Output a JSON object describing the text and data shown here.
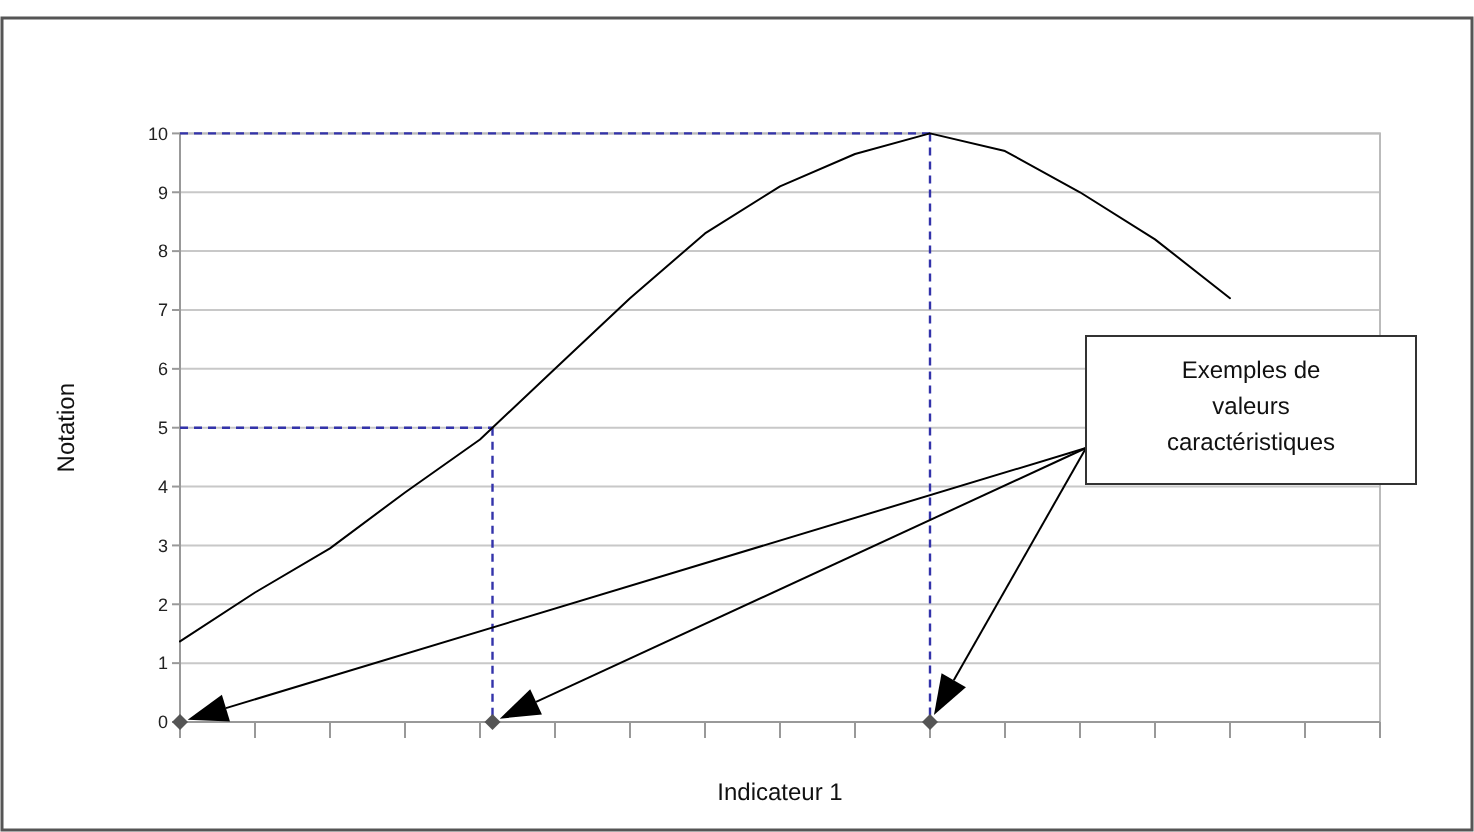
{
  "chart_data": {
    "type": "line",
    "xlabel": "Indicateur 1",
    "ylabel": "Notation",
    "categories": [
      null,
      null,
      null,
      null,
      null,
      null,
      null,
      null,
      null,
      null,
      null,
      null,
      null,
      null,
      null,
      null,
      null
    ],
    "ylim": [
      0,
      10
    ],
    "yticks": [
      0,
      1,
      2,
      3,
      4,
      5,
      6,
      7,
      8,
      9,
      10
    ],
    "tick_labels": "y",
    "grid": "y",
    "series": [
      {
        "color": "#000000",
        "values": [
          1.37,
          2.2,
          2.95,
          3.9,
          4.8,
          6.0,
          7.2,
          8.3,
          9.1,
          9.65,
          10,
          9.7,
          9.0,
          8.2,
          7.2,
          null,
          null
        ]
      }
    ],
    "ref_lines": [
      {
        "axis": "y",
        "value": 5,
        "color": "#3333aa",
        "line_style": "dashed"
      },
      {
        "axis": "y",
        "value": 10,
        "color": "#3333aa",
        "line_style": "dashed"
      }
    ],
    "annotations": [
      "Exemples de valeurs caractéristiques"
    ]
  }
}
